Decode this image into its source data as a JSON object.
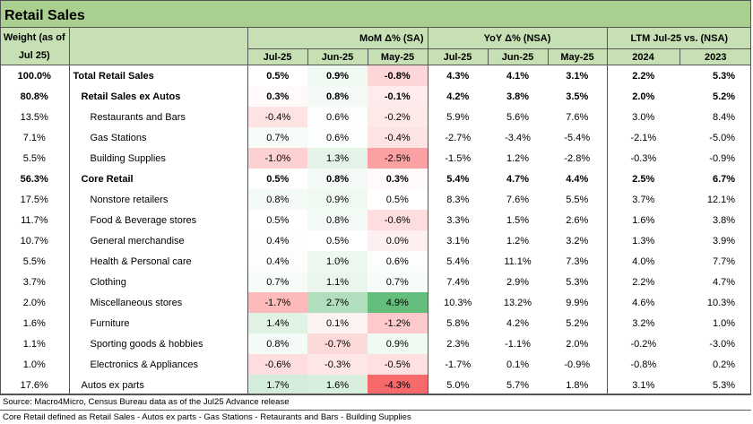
{
  "title": "Retail Sales",
  "headers": {
    "weight": "Weight (as of Jul 25)",
    "mom_group": "MoM Δ% (SA)",
    "yoy_group": "YoY Δ% (NSA)",
    "ltm_group": "LTM Jul-25 vs. (NSA)",
    "mom_cols": [
      "Jul-25",
      "Jun-25",
      "May-25"
    ],
    "yoy_cols": [
      "Jul-25",
      "Jun-25",
      "May-25"
    ],
    "ltm_cols": [
      "2024",
      "2023"
    ]
  },
  "chart_data": {
    "type": "table",
    "title": "Retail Sales",
    "heatmap_columns": "MoM Δ% (SA)",
    "heatmap_colors": {
      "low": "#f8696b",
      "mid": "#ffffff",
      "high": "#63be7b"
    },
    "rows": [
      {
        "weight": "100.0%",
        "name": "Total Retail Sales",
        "level": 0,
        "bold": true,
        "mom": [
          0.5,
          0.9,
          -0.8
        ],
        "yoy": [
          4.3,
          4.1,
          3.1
        ],
        "ltm": [
          2.2,
          5.3
        ]
      },
      {
        "weight": "80.8%",
        "name": "Retail Sales ex Autos",
        "level": 1,
        "bold": true,
        "mom": [
          0.3,
          0.8,
          -0.1
        ],
        "yoy": [
          4.2,
          3.8,
          3.5
        ],
        "ltm": [
          2.0,
          5.2
        ]
      },
      {
        "weight": "13.5%",
        "name": "Restaurants and Bars",
        "level": 2,
        "bold": false,
        "mom": [
          -0.4,
          0.6,
          -0.2
        ],
        "yoy": [
          5.9,
          5.6,
          7.6
        ],
        "ltm": [
          3.0,
          8.4
        ]
      },
      {
        "weight": "7.1%",
        "name": "Gas Stations",
        "level": 2,
        "bold": false,
        "mom": [
          0.7,
          0.6,
          -0.4
        ],
        "yoy": [
          -2.7,
          -3.4,
          -5.4
        ],
        "ltm": [
          -2.1,
          -5.0
        ]
      },
      {
        "weight": "5.5%",
        "name": "Building Supplies",
        "level": 2,
        "bold": false,
        "mom": [
          -1.0,
          1.3,
          -2.5
        ],
        "yoy": [
          -1.5,
          1.2,
          -2.8
        ],
        "ltm": [
          -0.3,
          -0.9
        ]
      },
      {
        "weight": "56.3%",
        "name": "Core Retail",
        "level": 1,
        "bold": true,
        "mom": [
          0.5,
          0.8,
          0.3
        ],
        "yoy": [
          5.4,
          4.7,
          4.4
        ],
        "ltm": [
          2.5,
          6.7
        ]
      },
      {
        "weight": "17.5%",
        "name": "Nonstore retailers",
        "level": 2,
        "bold": false,
        "mom": [
          0.8,
          0.9,
          0.5
        ],
        "yoy": [
          8.3,
          7.6,
          5.5
        ],
        "ltm": [
          3.7,
          12.1
        ]
      },
      {
        "weight": "11.7%",
        "name": "Food & Beverage stores",
        "level": 2,
        "bold": false,
        "mom": [
          0.5,
          0.8,
          -0.6
        ],
        "yoy": [
          3.3,
          1.5,
          2.6
        ],
        "ltm": [
          1.6,
          3.8
        ]
      },
      {
        "weight": "10.7%",
        "name": "General merchandise",
        "level": 2,
        "bold": false,
        "mom": [
          0.4,
          0.5,
          0.0
        ],
        "yoy": [
          3.1,
          1.2,
          3.2
        ],
        "ltm": [
          1.3,
          3.9
        ]
      },
      {
        "weight": "5.5%",
        "name": "Health & Personal care",
        "level": 2,
        "bold": false,
        "mom": [
          0.4,
          1.0,
          0.6
        ],
        "yoy": [
          5.4,
          11.1,
          7.3
        ],
        "ltm": [
          4.0,
          7.7
        ]
      },
      {
        "weight": "3.7%",
        "name": "Clothing",
        "level": 2,
        "bold": false,
        "mom": [
          0.7,
          1.1,
          0.7
        ],
        "yoy": [
          7.4,
          2.9,
          5.3
        ],
        "ltm": [
          2.2,
          4.7
        ]
      },
      {
        "weight": "2.0%",
        "name": "Miscellaneous stores",
        "level": 2,
        "bold": false,
        "mom": [
          -1.7,
          2.7,
          4.9
        ],
        "yoy": [
          10.3,
          13.2,
          9.9
        ],
        "ltm": [
          4.6,
          10.3
        ]
      },
      {
        "weight": "1.6%",
        "name": "Furniture",
        "level": 2,
        "bold": false,
        "mom": [
          1.4,
          0.1,
          -1.2
        ],
        "yoy": [
          5.8,
          4.2,
          5.2
        ],
        "ltm": [
          3.2,
          1.0
        ]
      },
      {
        "weight": "1.1%",
        "name": "Sporting goods & hobbies",
        "level": 2,
        "bold": false,
        "mom": [
          0.8,
          -0.7,
          0.9
        ],
        "yoy": [
          2.3,
          -1.1,
          2.0
        ],
        "ltm": [
          -0.2,
          -3.0
        ]
      },
      {
        "weight": "1.0%",
        "name": "Electronics & Appliances",
        "level": 2,
        "bold": false,
        "mom": [
          -0.6,
          -0.3,
          -0.5
        ],
        "yoy": [
          -1.7,
          0.1,
          -0.9
        ],
        "ltm": [
          -0.8,
          0.2
        ]
      },
      {
        "weight": "17.6%",
        "name": "Autos ex parts",
        "level": 1,
        "bold": false,
        "mom": [
          1.7,
          1.6,
          -4.3
        ],
        "yoy": [
          5.0,
          5.7,
          1.8
        ],
        "ltm": [
          3.1,
          5.3
        ]
      }
    ]
  },
  "footer": {
    "source": "Source: Macro4Micro, Census Bureau    data as of the Jul25 Advance release",
    "note": "Core Retail defined as Retail Sales - Autos ex parts - Gas Stations - Retaurants and Bars - Building Supplies"
  }
}
